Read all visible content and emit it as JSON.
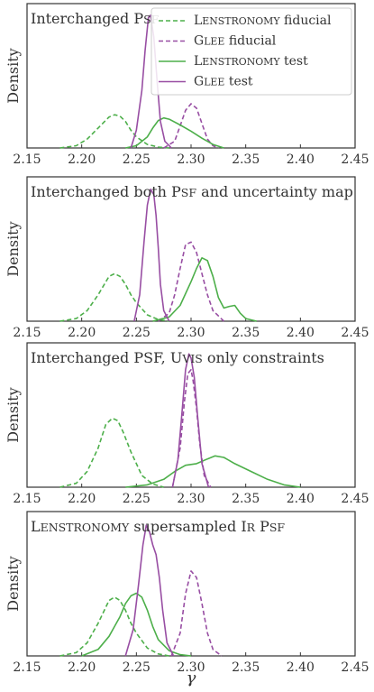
{
  "chart_data": {
    "type": "line",
    "xlabel": "γ",
    "ylabel": "Density",
    "xlim": [
      2.15,
      2.45
    ],
    "xticks": [
      "2.15",
      "2.20",
      "2.25",
      "2.30",
      "2.35",
      "2.40",
      "2.45"
    ],
    "legend": {
      "placement": "top-right",
      "entries": [
        {
          "label": "LENSTRONOMY fiducial",
          "color": "#4daf4a",
          "style": "dashed"
        },
        {
          "label": "GLEE fiducial",
          "color": "#984ea3",
          "style": "dashed"
        },
        {
          "label": "LENSTRONOMY test",
          "color": "#4daf4a",
          "style": "solid"
        },
        {
          "label": "GLEE test",
          "color": "#984ea3",
          "style": "solid"
        }
      ]
    },
    "panels": [
      {
        "title": "Interchanged PSF",
        "series": [
          {
            "name": "LENSTRONOMY fiducial",
            "color": "#4daf4a",
            "dash": true,
            "x": [
              2.18,
              2.195,
              2.205,
              2.215,
              2.225,
              2.23,
              2.235,
              2.24,
              2.245,
              2.25,
              2.26,
              2.27,
              2.28
            ],
            "y": [
              0,
              0.05,
              0.2,
              0.45,
              0.7,
              0.75,
              0.72,
              0.6,
              0.4,
              0.25,
              0.08,
              0.02,
              0
            ]
          },
          {
            "name": "GLEE fiducial",
            "color": "#984ea3",
            "dash": true,
            "x": [
              2.275,
              2.285,
              2.29,
              2.295,
              2.3,
              2.305,
              2.31,
              2.315,
              2.32,
              2.325
            ],
            "y": [
              0,
              0.15,
              0.5,
              0.85,
              1.0,
              0.9,
              0.55,
              0.2,
              0.05,
              0
            ]
          },
          {
            "name": "LENSTRONOMY test",
            "color": "#4daf4a",
            "dash": false,
            "x": [
              2.24,
              2.25,
              2.26,
              2.265,
              2.27,
              2.275,
              2.28,
              2.29,
              2.3,
              2.31,
              2.32,
              2.33
            ],
            "y": [
              0,
              0.05,
              0.25,
              0.45,
              0.62,
              0.68,
              0.65,
              0.52,
              0.38,
              0.22,
              0.08,
              0
            ]
          },
          {
            "name": "GLEE test",
            "color": "#984ea3",
            "dash": false,
            "x": [
              2.245,
              2.25,
              2.255,
              2.258,
              2.261,
              2.263,
              2.266,
              2.269,
              2.272,
              2.276,
              2.282
            ],
            "y": [
              0,
              0.4,
              1.3,
              2.2,
              2.95,
              3.0,
              2.5,
              1.5,
              0.6,
              0.15,
              0
            ]
          }
        ],
        "ymax": 3.1
      },
      {
        "title": "Interchanged both PSF and uncertainty map",
        "series": [
          {
            "name": "LENSTRONOMY fiducial",
            "color": "#4daf4a",
            "dash": true,
            "x": [
              2.18,
              2.195,
              2.205,
              2.215,
              2.225,
              2.23,
              2.235,
              2.24,
              2.245,
              2.25,
              2.26,
              2.27,
              2.28
            ],
            "y": [
              0,
              0.05,
              0.2,
              0.5,
              0.85,
              0.9,
              0.85,
              0.7,
              0.5,
              0.35,
              0.12,
              0.03,
              0
            ]
          },
          {
            "name": "GLEE fiducial",
            "color": "#984ea3",
            "dash": true,
            "x": [
              2.27,
              2.28,
              2.285,
              2.29,
              2.295,
              2.3,
              2.305,
              2.31,
              2.315,
              2.32,
              2.33
            ],
            "y": [
              0,
              0.15,
              0.5,
              1.0,
              1.45,
              1.5,
              1.3,
              0.9,
              0.5,
              0.2,
              0
            ]
          },
          {
            "name": "LENSTRONOMY test",
            "color": "#4daf4a",
            "dash": false,
            "x": [
              2.265,
              2.28,
              2.29,
              2.3,
              2.305,
              2.31,
              2.315,
              2.32,
              2.325,
              2.33,
              2.335,
              2.34,
              2.345,
              2.35,
              2.36
            ],
            "y": [
              0,
              0.08,
              0.3,
              0.75,
              1.0,
              1.2,
              1.15,
              0.85,
              0.45,
              0.25,
              0.28,
              0.3,
              0.15,
              0.05,
              0
            ]
          },
          {
            "name": "GLEE test",
            "color": "#984ea3",
            "dash": false,
            "x": [
              2.248,
              2.253,
              2.257,
              2.26,
              2.263,
              2.266,
              2.268,
              2.27,
              2.272,
              2.275,
              2.28
            ],
            "y": [
              0,
              0.5,
              1.5,
              2.2,
              2.5,
              2.4,
              2.0,
              1.4,
              0.7,
              0.2,
              0
            ]
          }
        ],
        "ymax": 2.6
      },
      {
        "title": "Interchanged PSF, UVIS only constraints",
        "series": [
          {
            "name": "LENSTRONOMY fiducial",
            "color": "#4daf4a",
            "dash": true,
            "x": [
              2.18,
              2.195,
              2.205,
              2.215,
              2.222,
              2.228,
              2.233,
              2.238,
              2.245,
              2.255,
              2.265,
              2.275
            ],
            "y": [
              0,
              0.05,
              0.2,
              0.5,
              0.8,
              0.88,
              0.85,
              0.7,
              0.45,
              0.15,
              0.04,
              0
            ]
          },
          {
            "name": "GLEE fiducial",
            "color": "#984ea3",
            "dash": true,
            "x": [
              2.283,
              2.29,
              2.294,
              2.297,
              2.3,
              2.302,
              2.305,
              2.308,
              2.312,
              2.318
            ],
            "y": [
              0,
              0.5,
              1.1,
              1.45,
              1.5,
              1.35,
              1.0,
              0.55,
              0.15,
              0
            ]
          },
          {
            "name": "LENSTRONOMY test",
            "color": "#4daf4a",
            "dash": false,
            "x": [
              2.24,
              2.26,
              2.275,
              2.285,
              2.295,
              2.305,
              2.315,
              2.322,
              2.33,
              2.34,
              2.355,
              2.37,
              2.385,
              2.4
            ],
            "y": [
              0,
              0.03,
              0.1,
              0.2,
              0.28,
              0.3,
              0.36,
              0.4,
              0.38,
              0.3,
              0.2,
              0.1,
              0.03,
              0
            ]
          },
          {
            "name": "GLEE test",
            "color": "#984ea3",
            "dash": false,
            "x": [
              2.283,
              2.288,
              2.292,
              2.295,
              2.298,
              2.3,
              2.303,
              2.306,
              2.31,
              2.316
            ],
            "y": [
              0,
              0.35,
              1.0,
              1.5,
              1.7,
              1.65,
              1.4,
              0.9,
              0.3,
              0
            ]
          }
        ],
        "ymax": 1.75
      },
      {
        "title": "LENSTRONOMY supersampled IR PSF",
        "series": [
          {
            "name": "LENSTRONOMY fiducial",
            "color": "#4daf4a",
            "dash": true,
            "x": [
              2.18,
              2.195,
              2.205,
              2.215,
              2.225,
              2.23,
              2.235,
              2.24,
              2.245,
              2.25,
              2.26,
              2.27,
              2.28
            ],
            "y": [
              0,
              0.05,
              0.2,
              0.5,
              0.85,
              0.9,
              0.85,
              0.7,
              0.5,
              0.35,
              0.12,
              0.03,
              0
            ]
          },
          {
            "name": "GLEE fiducial",
            "color": "#984ea3",
            "dash": true,
            "x": [
              2.282,
              2.29,
              2.295,
              2.3,
              2.305,
              2.31,
              2.315,
              2.32,
              2.328
            ],
            "y": [
              0,
              0.35,
              0.95,
              1.3,
              1.2,
              0.8,
              0.35,
              0.1,
              0
            ]
          },
          {
            "name": "LENSTRONOMY test",
            "color": "#4daf4a",
            "dash": false,
            "x": [
              2.2,
              2.215,
              2.225,
              2.235,
              2.24,
              2.245,
              2.25,
              2.255,
              2.26,
              2.265,
              2.27,
              2.28,
              2.29,
              2.3
            ],
            "y": [
              0,
              0.1,
              0.3,
              0.6,
              0.8,
              0.92,
              0.96,
              0.9,
              0.7,
              0.45,
              0.25,
              0.08,
              0.02,
              0
            ]
          },
          {
            "name": "GLEE test",
            "color": "#984ea3",
            "dash": false,
            "x": [
              2.24,
              2.247,
              2.252,
              2.256,
              2.259,
              2.262,
              2.265,
              2.268,
              2.271,
              2.274,
              2.278,
              2.284
            ],
            "y": [
              0,
              0.4,
              1.1,
              1.7,
              2.0,
              1.9,
              1.7,
              1.55,
              1.2,
              0.7,
              0.2,
              0
            ]
          }
        ],
        "ymax": 2.1
      }
    ]
  }
}
